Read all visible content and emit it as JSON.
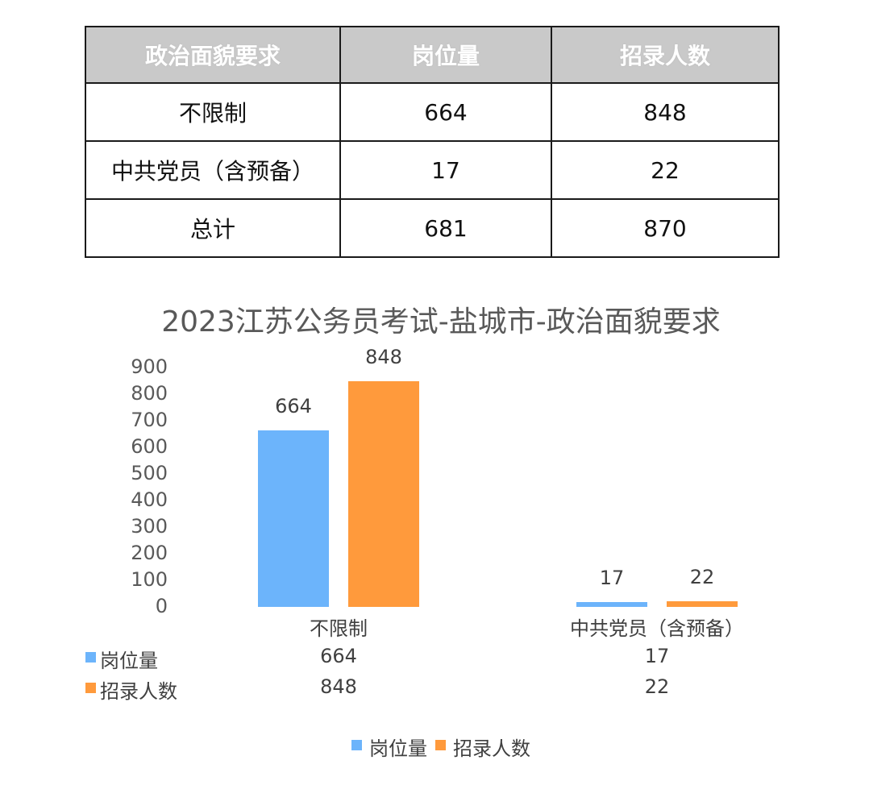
{
  "table": {
    "headers": [
      "政治面貌要求",
      "岗位量",
      "招录人数"
    ],
    "rows": [
      [
        "不限制",
        "664",
        "848"
      ],
      [
        "中共党员（含预备）",
        "17",
        "22"
      ],
      [
        "总计",
        "681",
        "870"
      ]
    ]
  },
  "chart_data": {
    "type": "bar",
    "title": "2023江苏公务员考试-盐城市-政治面貌要求",
    "categories": [
      "不限制",
      "中共党员（含预备）"
    ],
    "series": [
      {
        "name": "岗位量",
        "values": [
          664,
          17
        ],
        "color": "#6cb4fb"
      },
      {
        "name": "招录人数",
        "values": [
          848,
          22
        ],
        "color": "#ff9a3c"
      }
    ],
    "yticks": [
      "0",
      "100",
      "200",
      "300",
      "400",
      "500",
      "600",
      "700",
      "800",
      "900"
    ],
    "ylim": [
      0,
      900
    ],
    "grid": false,
    "legend": "bottom",
    "data_table": true
  }
}
